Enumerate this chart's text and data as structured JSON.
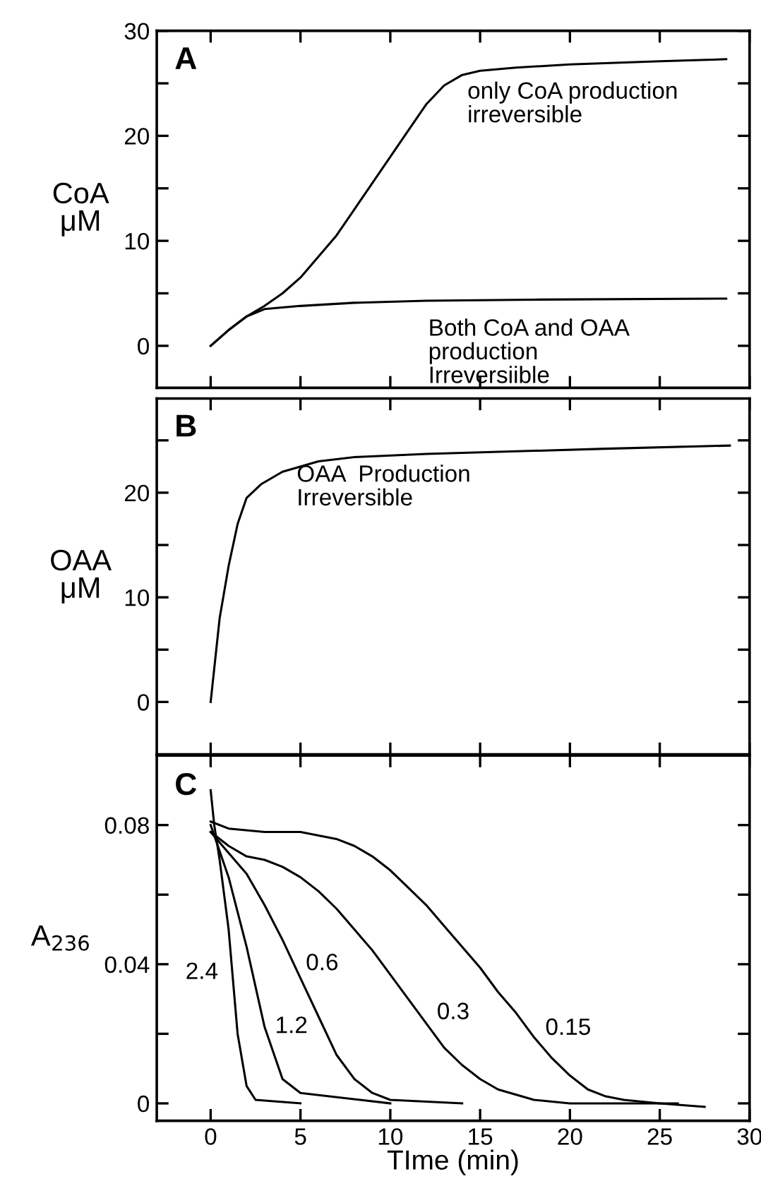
{
  "chart_data": [
    {
      "type": "line",
      "title": "A",
      "ylabel": "CoA\nμM",
      "xlim": [
        -3,
        30
      ],
      "xticks": [
        0,
        5,
        10,
        15,
        20,
        25,
        30
      ],
      "ylim": [
        -4,
        30
      ],
      "yticks": [
        0,
        {
          "value": 5,
          "label": null
        },
        10,
        {
          "value": 15,
          "label": null
        },
        20,
        {
          "value": 25,
          "label": null
        },
        30
      ],
      "tick_labels": "y",
      "grid": false,
      "legend": false,
      "marker": "none",
      "line_style": "solid",
      "series": [
        {
          "name": "only CoA production\nirreversible",
          "color": "#000000",
          "x": [
            0,
            1,
            2,
            3,
            4,
            5,
            6,
            7,
            8,
            9,
            10,
            11,
            12,
            13,
            14,
            15,
            17,
            20,
            25,
            28.7
          ],
          "values": [
            0,
            1.5,
            2.8,
            3.8,
            5,
            6.5,
            8.5,
            10.5,
            13,
            15.5,
            18,
            20.5,
            23,
            24.8,
            25.8,
            26.2,
            26.5,
            26.8,
            27.1,
            27.3
          ]
        },
        {
          "name": "Both CoA and OAA\nproduction\nIrreversiible",
          "color": "#000000",
          "x": [
            0,
            1,
            2,
            3,
            5,
            8,
            12,
            18,
            28.7
          ],
          "values": [
            0,
            1.5,
            2.8,
            3.5,
            3.8,
            4.1,
            4.3,
            4.4,
            4.5
          ]
        }
      ]
    },
    {
      "type": "line",
      "title": "B",
      "ylabel": "OAA\nμM",
      "xlim": [
        -3,
        30
      ],
      "xticks": [
        0,
        5,
        10,
        15,
        20,
        25,
        30
      ],
      "ylim": [
        -5,
        29
      ],
      "yticks": [
        0,
        {
          "value": 5,
          "label": null
        },
        10,
        {
          "value": 15,
          "label": null
        },
        20,
        {
          "value": 25,
          "label": null
        }
      ],
      "tick_labels": "y",
      "grid": false,
      "legend": false,
      "marker": "none",
      "line_style": "solid",
      "series": [
        {
          "name": "OAA  Production\nIrreversible",
          "color": "#000000",
          "x": [
            0,
            0.5,
            1,
            1.5,
            2,
            2.8,
            4,
            6,
            8,
            12,
            18,
            22,
            28.9
          ],
          "values": [
            0,
            8,
            13,
            17,
            19.5,
            20.8,
            22,
            23,
            23.4,
            23.7,
            24,
            24.2,
            24.5
          ]
        }
      ]
    },
    {
      "type": "line",
      "title": "C",
      "xlabel": "TIme (min)",
      "ylabel": "A$_{236}$",
      "xlim": [
        -3,
        30
      ],
      "xticks": [
        0,
        5,
        10,
        15,
        20,
        25,
        30
      ],
      "ylim": [
        -0.005,
        0.1
      ],
      "yticks": [
        0,
        {
          "value": 0.02,
          "label": null
        },
        0.04,
        {
          "value": 0.06,
          "label": null
        },
        0.08
      ],
      "grid": false,
      "legend": false,
      "marker": "none",
      "line_style": "solid",
      "series": [
        {
          "name": "2.4",
          "color": "#000000",
          "x": [
            0,
            0.2,
            0.5,
            1,
            1.5,
            2,
            2.5,
            5
          ],
          "values": [
            0.09,
            0.08,
            0.07,
            0.05,
            0.02,
            0.005,
            0.001,
            0
          ]
        },
        {
          "name": "1.2",
          "color": "#000000",
          "x": [
            0,
            1,
            2,
            3,
            4,
            5,
            10
          ],
          "values": [
            0.08,
            0.065,
            0.045,
            0.022,
            0.007,
            0.003,
            0
          ]
        },
        {
          "name": "0.6",
          "color": "#000000",
          "x": [
            0,
            1,
            2,
            3,
            4,
            5,
            6,
            7,
            8,
            9,
            10,
            14
          ],
          "values": [
            0.078,
            0.072,
            0.066,
            0.057,
            0.047,
            0.036,
            0.025,
            0.014,
            0.007,
            0.003,
            0.001,
            0
          ]
        },
        {
          "name": "0.3",
          "color": "#000000",
          "x": [
            0,
            1,
            2,
            3,
            4,
            5,
            6,
            7,
            8,
            9,
            10,
            11,
            12,
            13,
            14,
            15,
            16,
            18,
            20,
            26
          ],
          "values": [
            0.078,
            0.074,
            0.071,
            0.07,
            0.068,
            0.065,
            0.061,
            0.056,
            0.05,
            0.044,
            0.037,
            0.03,
            0.023,
            0.016,
            0.011,
            0.007,
            0.004,
            0.001,
            0,
            0
          ]
        },
        {
          "name": "0.15",
          "color": "#000000",
          "x": [
            0,
            1,
            3,
            5,
            7,
            8,
            9,
            10,
            11,
            12,
            13,
            14,
            15,
            16,
            17,
            18,
            19,
            20,
            21,
            22,
            23,
            25,
            27.5
          ],
          "values": [
            0.081,
            0.079,
            0.078,
            0.078,
            0.076,
            0.074,
            0.071,
            0.067,
            0.062,
            0.057,
            0.051,
            0.045,
            0.039,
            0.032,
            0.026,
            0.019,
            0.013,
            0.008,
            0.004,
            0.002,
            0.001,
            0,
            -0.001
          ]
        }
      ]
    }
  ]
}
